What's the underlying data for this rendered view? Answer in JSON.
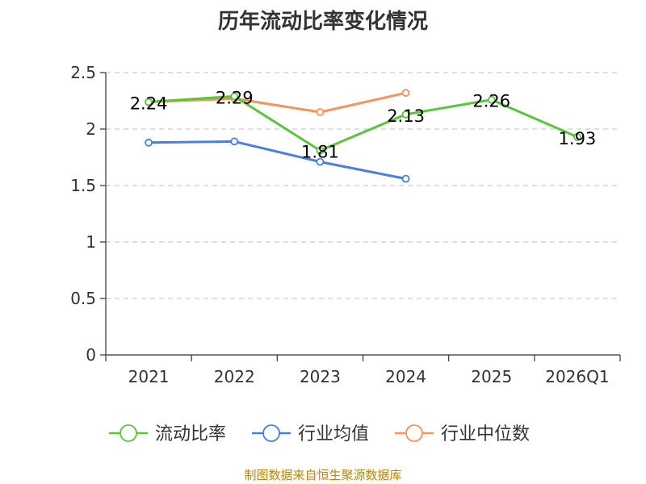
{
  "chart_data": {
    "type": "line",
    "title": "历年流动比率变化情况",
    "categories": [
      "2021",
      "2022",
      "2023",
      "2024",
      "2025",
      "2026Q1"
    ],
    "y_ticks": [
      "0",
      "0.5",
      "1",
      "1.5",
      "2",
      "2.5"
    ],
    "ylim": [
      0,
      2.5
    ],
    "grid": true,
    "legend_position": "bottom",
    "series": [
      {
        "name": "流动比率",
        "color": "#5ac43a",
        "values": [
          2.24,
          2.29,
          1.81,
          2.13,
          2.26,
          1.93
        ],
        "labels": [
          "2.24",
          "2.29",
          "1.81",
          "2.13",
          "2.26",
          "1.93"
        ]
      },
      {
        "name": "行业均值",
        "color": "#4a7fe0",
        "values": [
          1.88,
          1.89,
          1.71,
          1.56,
          null,
          null
        ]
      },
      {
        "name": "行业中位数",
        "color": "#f5935e",
        "values": [
          2.24,
          2.27,
          2.15,
          2.32,
          null,
          null
        ]
      }
    ]
  },
  "footer": {
    "source": "制图数据来自恒生聚源数据库"
  }
}
